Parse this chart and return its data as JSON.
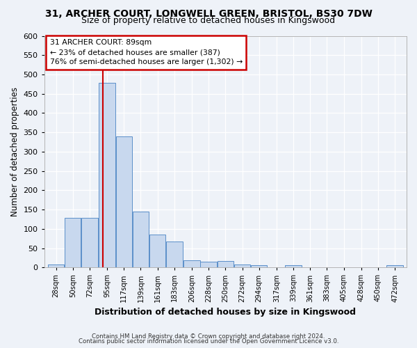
{
  "title": "31, ARCHER COURT, LONGWELL GREEN, BRISTOL, BS30 7DW",
  "subtitle": "Size of property relative to detached houses in Kingswood",
  "xlabel": "Distribution of detached houses by size in Kingswood",
  "ylabel": "Number of detached properties",
  "bar_labels": [
    "28sqm",
    "50sqm",
    "72sqm",
    "95sqm",
    "117sqm",
    "139sqm",
    "161sqm",
    "183sqm",
    "206sqm",
    "228sqm",
    "250sqm",
    "272sqm",
    "294sqm",
    "317sqm",
    "339sqm",
    "361sqm",
    "383sqm",
    "405sqm",
    "428sqm",
    "450sqm",
    "472sqm"
  ],
  "bar_values": [
    8,
    128,
    128,
    478,
    340,
    145,
    86,
    68,
    19,
    14,
    16,
    7,
    5,
    0,
    5,
    0,
    0,
    0,
    0,
    0,
    5
  ],
  "bar_color": "#c8d8ee",
  "bar_edge_color": "#5b8fc9",
  "property_label": "31 ARCHER COURT: 89sqm",
  "annotation_line1": "← 23% of detached houses are smaller (387)",
  "annotation_line2": "76% of semi-detached houses are larger (1,302) →",
  "vline_color": "#cc0000",
  "vline_x_label": "95sqm",
  "ylim": [
    0,
    600
  ],
  "yticks": [
    0,
    50,
    100,
    150,
    200,
    250,
    300,
    350,
    400,
    450,
    500,
    550,
    600
  ],
  "footnote1": "Contains HM Land Registry data © Crown copyright and database right 2024.",
  "footnote2": "Contains public sector information licensed under the Open Government Licence v3.0.",
  "bg_color": "#eef2f8",
  "plot_bg_color": "#eef2f8",
  "annotation_box_color": "#ffffff",
  "annotation_box_edge": "#cc0000",
  "title_fontsize": 10,
  "subtitle_fontsize": 9
}
